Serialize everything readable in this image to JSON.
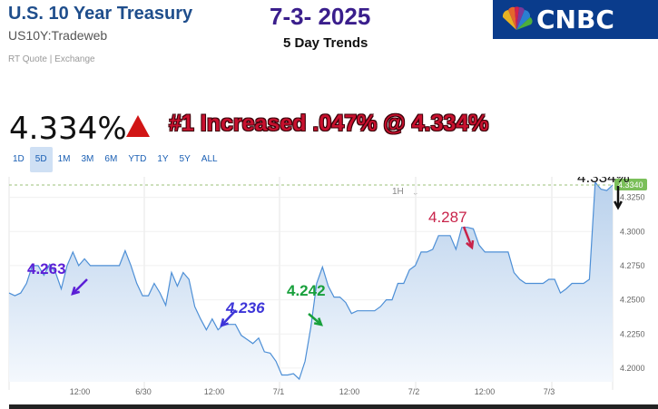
{
  "header": {
    "title": "U.S. 10 Year Treasury",
    "symbol": "US10Y:Tradeweb",
    "quote_source": "RT Quote | Exchange",
    "date": "7-3- 2025",
    "subtitle": "5 Day Trends"
  },
  "brand": {
    "name": "CNBC",
    "color": "#0a3c8c"
  },
  "quote": {
    "price": "4.334%",
    "direction": "up",
    "headline": "#1 Increased .047% @ 4.334%"
  },
  "range_tabs": [
    "1D",
    "5D",
    "1M",
    "3M",
    "6M",
    "YTD",
    "1Y",
    "5Y",
    "ALL"
  ],
  "active_range": "5D",
  "interval": "1H",
  "chart_data": {
    "type": "area",
    "x_tick_labels": [
      "12:00",
      "6/30",
      "12:00",
      "7/1",
      "12:00",
      "7/2",
      "12:00",
      "7/3"
    ],
    "y_tick_labels": [
      "4.3250",
      "4.3000",
      "4.2750",
      "4.2500",
      "4.2250",
      "4.2000"
    ],
    "ylim": [
      4.19,
      4.34
    ],
    "reference_line": 4.334,
    "last_value_label": "4.3340",
    "values": [
      4.255,
      4.253,
      4.255,
      4.262,
      4.275,
      4.275,
      4.268,
      4.276,
      4.27,
      4.258,
      4.275,
      4.285,
      4.275,
      4.28,
      4.275,
      4.275,
      4.275,
      4.275,
      4.275,
      4.275,
      4.286,
      4.275,
      4.262,
      4.253,
      4.253,
      4.262,
      4.255,
      4.246,
      4.27,
      4.26,
      4.27,
      4.265,
      4.245,
      4.236,
      4.228,
      4.236,
      4.228,
      4.232,
      4.232,
      4.232,
      4.224,
      4.221,
      4.218,
      4.222,
      4.212,
      4.211,
      4.205,
      4.195,
      4.195,
      4.196,
      4.192,
      4.205,
      4.23,
      4.262,
      4.274,
      4.26,
      4.252,
      4.252,
      4.248,
      4.24,
      4.242,
      4.242,
      4.242,
      4.242,
      4.245,
      4.25,
      4.25,
      4.262,
      4.262,
      4.272,
      4.275,
      4.285,
      4.285,
      4.287,
      4.297,
      4.297,
      4.297,
      4.287,
      4.303,
      4.303,
      4.302,
      4.29,
      4.285,
      4.285,
      4.285,
      4.285,
      4.285,
      4.27,
      4.265,
      4.262,
      4.262,
      4.262,
      4.262,
      4.265,
      4.265,
      4.255,
      4.258,
      4.262,
      4.262,
      4.262,
      4.265,
      4.336,
      4.331,
      4.33,
      4.334
    ],
    "annotations": [
      {
        "text": "4.263",
        "color": "#5b1fd6"
      },
      {
        "text": "4.236",
        "color": "#3d35d8"
      },
      {
        "text": "4.242",
        "color": "#18a03c"
      },
      {
        "text": "4.287",
        "color": "#c8234a"
      },
      {
        "text": "4.334%",
        "color": "#111111"
      }
    ]
  }
}
